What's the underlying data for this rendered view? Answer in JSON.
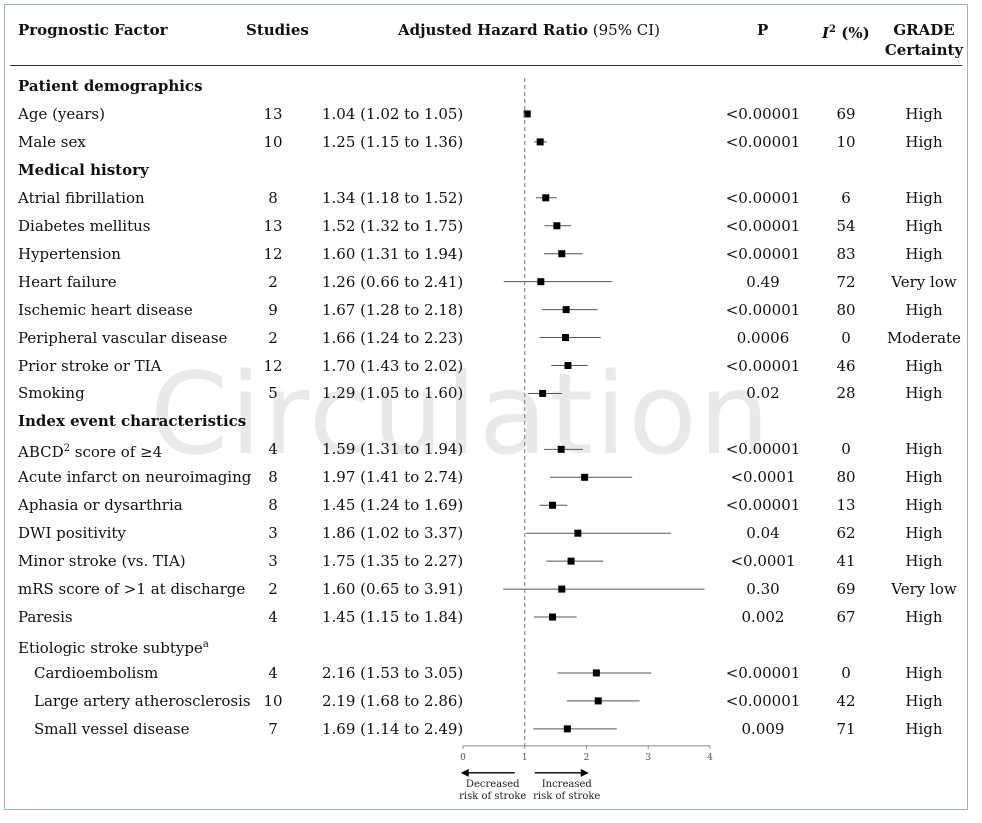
{
  "table": {
    "headers": {
      "factor": "Prognostic Factor",
      "studies": "Studies",
      "hr_bold": "Adjusted Hazard Ratio",
      "hr_ci": " (95% CI)",
      "p": "P",
      "i2_symbol": "I",
      "i2_sup": "2",
      "i2_unit": " (%)",
      "grade_line1": "GRADE",
      "grade_line2": "Certainty"
    },
    "rows": [
      {
        "kind": "section",
        "label": "Patient demographics"
      },
      {
        "kind": "data",
        "label": "Age (years)",
        "studies": "13",
        "hr": 1.04,
        "lo": 1.02,
        "hi": 1.05,
        "hr_text": "1.04 (1.02 to 1.05)",
        "p": "<0.00001",
        "i2": "69",
        "grade": "High"
      },
      {
        "kind": "data",
        "label": "Male sex",
        "studies": "10",
        "hr": 1.25,
        "lo": 1.15,
        "hi": 1.36,
        "hr_text": "1.25 (1.15 to 1.36)",
        "p": "<0.00001",
        "i2": "10",
        "grade": "High"
      },
      {
        "kind": "section",
        "label": "Medical history"
      },
      {
        "kind": "data",
        "label": "Atrial fibrillation",
        "studies": "8",
        "hr": 1.34,
        "lo": 1.18,
        "hi": 1.52,
        "hr_text": "1.34 (1.18 to 1.52)",
        "p": "<0.00001",
        "i2": "6",
        "grade": "High"
      },
      {
        "kind": "data",
        "label": "Diabetes mellitus",
        "studies": "13",
        "hr": 1.52,
        "lo": 1.32,
        "hi": 1.75,
        "hr_text": "1.52 (1.32 to 1.75)",
        "p": "<0.00001",
        "i2": "54",
        "grade": "High"
      },
      {
        "kind": "data",
        "label": "Hypertension",
        "studies": "12",
        "hr": 1.6,
        "lo": 1.31,
        "hi": 1.94,
        "hr_text": "1.60 (1.31 to 1.94)",
        "p": "<0.00001",
        "i2": "83",
        "grade": "High"
      },
      {
        "kind": "data",
        "label": "Heart failure",
        "studies": "2",
        "hr": 1.26,
        "lo": 0.66,
        "hi": 2.41,
        "hr_text": "1.26 (0.66 to 2.41)",
        "p": "0.49",
        "i2": "72",
        "grade": "Very low"
      },
      {
        "kind": "data",
        "label": "Ischemic heart disease",
        "studies": "9",
        "hr": 1.67,
        "lo": 1.28,
        "hi": 2.18,
        "hr_text": "1.67 (1.28 to 2.18)",
        "p": "<0.00001",
        "i2": "80",
        "grade": "High"
      },
      {
        "kind": "data",
        "label": "Peripheral vascular disease",
        "studies": "2",
        "hr": 1.66,
        "lo": 1.24,
        "hi": 2.23,
        "hr_text": "1.66 (1.24 to 2.23)",
        "p": "0.0006",
        "i2": "0",
        "grade": "Moderate"
      },
      {
        "kind": "data",
        "label": "Prior stroke or TIA",
        "studies": "12",
        "hr": 1.7,
        "lo": 1.43,
        "hi": 2.02,
        "hr_text": "1.70 (1.43 to 2.02)",
        "p": "<0.00001",
        "i2": "46",
        "grade": "High"
      },
      {
        "kind": "data",
        "label": "Smoking",
        "studies": "5",
        "hr": 1.29,
        "lo": 1.05,
        "hi": 1.6,
        "hr_text": "1.29 (1.05 to 1.60)",
        "p": "0.02",
        "i2": "28",
        "grade": "High"
      },
      {
        "kind": "section",
        "label": "Index event characteristics"
      },
      {
        "kind": "data",
        "label": "ABCD",
        "label_sup": "2",
        "label_tail": " score of ≥4",
        "studies": "4",
        "hr": 1.59,
        "lo": 1.31,
        "hi": 1.94,
        "hr_text": "1.59 (1.31 to 1.94)",
        "p": "<0.00001",
        "i2": "0",
        "grade": "High"
      },
      {
        "kind": "data",
        "label": "Acute infarct on neuroimaging",
        "studies": "8",
        "hr": 1.97,
        "lo": 1.41,
        "hi": 2.74,
        "hr_text": "1.97 (1.41 to 2.74)",
        "p": "<0.0001",
        "i2": "80",
        "grade": "High"
      },
      {
        "kind": "data",
        "label": "Aphasia or dysarthria",
        "studies": "8",
        "hr": 1.45,
        "lo": 1.24,
        "hi": 1.69,
        "hr_text": "1.45 (1.24 to 1.69)",
        "p": "<0.00001",
        "i2": "13",
        "grade": "High"
      },
      {
        "kind": "data",
        "label": "DWI positivity",
        "studies": "3",
        "hr": 1.86,
        "lo": 1.02,
        "hi": 3.37,
        "hr_text": "1.86 (1.02 to 3.37)",
        "p": "0.04",
        "i2": "62",
        "grade": "High"
      },
      {
        "kind": "data",
        "label": "Minor stroke (vs. TIA)",
        "studies": "3",
        "hr": 1.75,
        "lo": 1.35,
        "hi": 2.27,
        "hr_text": "1.75 (1.35 to 2.27)",
        "p": "<0.0001",
        "i2": "41",
        "grade": "High"
      },
      {
        "kind": "data",
        "label": "mRS score of >1 at discharge",
        "studies": "2",
        "hr": 1.6,
        "lo": 0.65,
        "hi": 3.91,
        "hr_text": "1.60 (0.65 to 3.91)",
        "p": "0.30",
        "i2": "69",
        "grade": "Very low"
      },
      {
        "kind": "data",
        "label": "Paresis",
        "studies": "4",
        "hr": 1.45,
        "lo": 1.15,
        "hi": 1.84,
        "hr_text": "1.45 (1.15 to 1.84)",
        "p": "0.002",
        "i2": "67",
        "grade": "High"
      },
      {
        "kind": "subsection",
        "label": "Etiologic stroke subtype",
        "label_sup": "a"
      },
      {
        "kind": "data",
        "indent": true,
        "label": "Cardioembolism",
        "studies": "4",
        "hr": 2.16,
        "lo": 1.53,
        "hi": 3.05,
        "hr_text": "2.16 (1.53 to 3.05)",
        "p": "<0.00001",
        "i2": "0",
        "grade": "High"
      },
      {
        "kind": "data",
        "indent": true,
        "label": "Large artery atherosclerosis",
        "studies": "10",
        "hr": 2.19,
        "lo": 1.68,
        "hi": 2.86,
        "hr_text": "2.19 (1.68 to 2.86)",
        "p": "<0.00001",
        "i2": "42",
        "grade": "High"
      },
      {
        "kind": "data",
        "indent": true,
        "label": "Small vessel disease",
        "studies": "7",
        "hr": 1.69,
        "lo": 1.14,
        "hi": 2.49,
        "hr_text": "1.69 (1.14 to 2.49)",
        "p": "0.009",
        "i2": "71",
        "grade": "High"
      }
    ]
  },
  "chart_data": {
    "type": "forest",
    "xlim": [
      0,
      4
    ],
    "x_ticks": [
      0,
      1,
      2,
      3,
      4
    ],
    "reference_line": 1,
    "left_label": [
      "Decreased",
      "risk of stroke"
    ],
    "right_label": [
      "Increased",
      "risk of stroke"
    ],
    "marker_color": "#000000",
    "line_color": "#555555"
  },
  "watermark": "Circulation"
}
